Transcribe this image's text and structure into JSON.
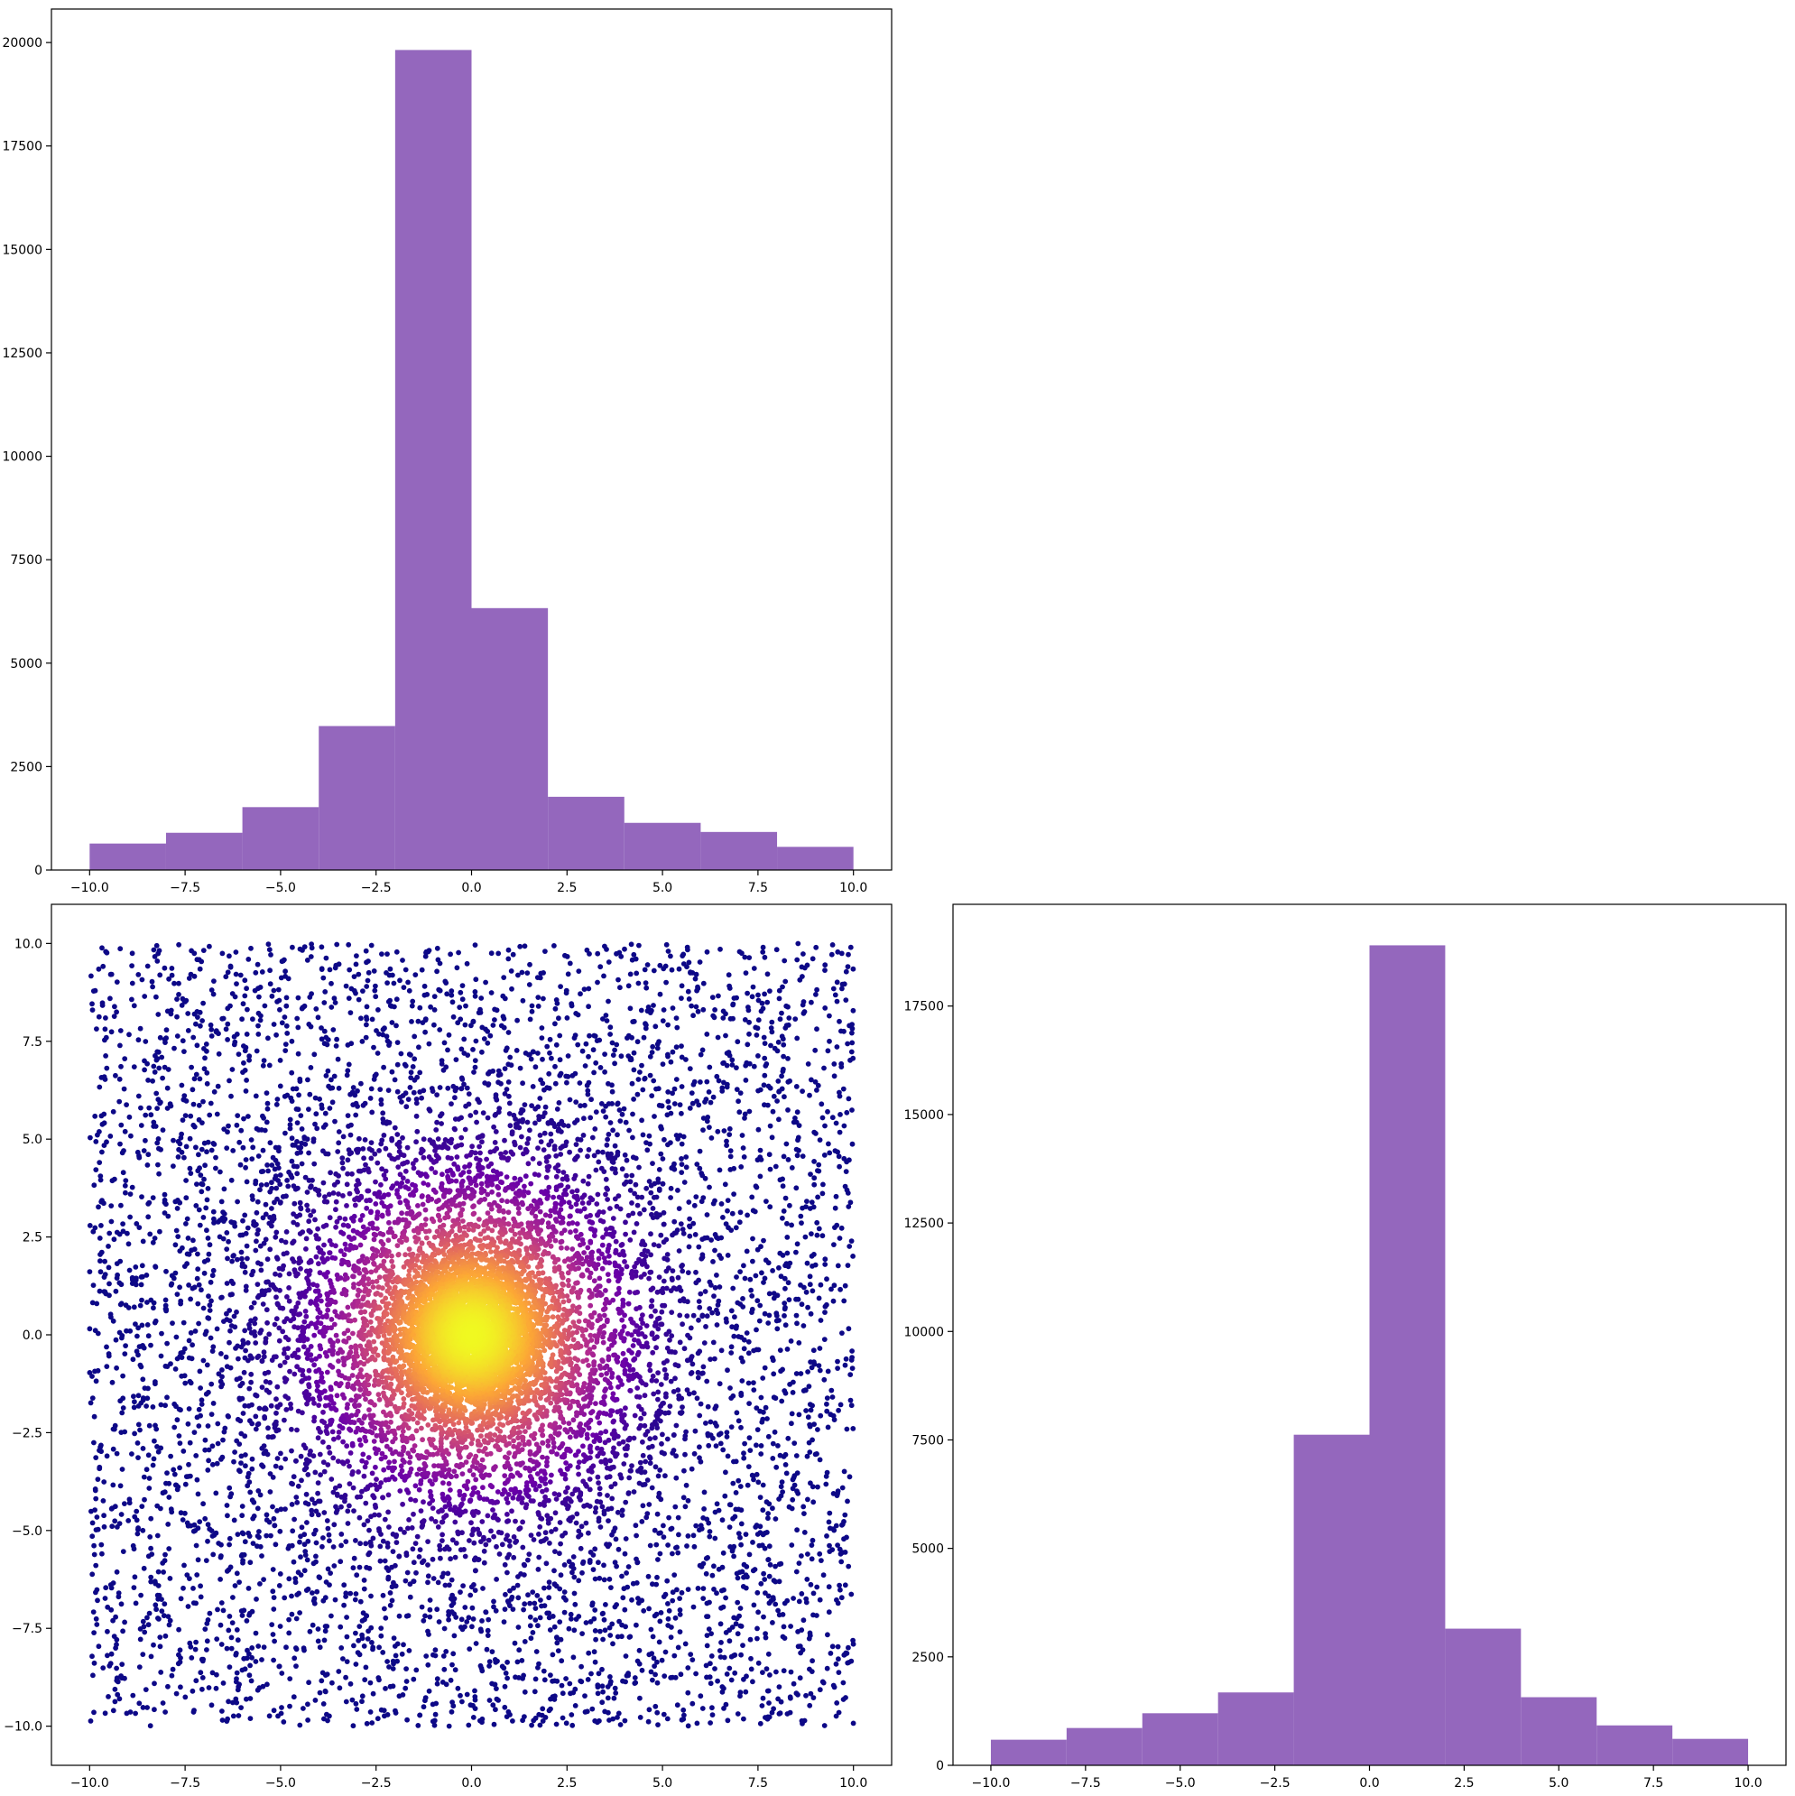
{
  "figure": {
    "layout": "2x2 corner plot, top-right empty",
    "background": "#ffffff"
  },
  "chart_data": [
    {
      "type": "bar",
      "panel": "top-left",
      "title": "",
      "xlabel": "",
      "ylabel": "",
      "bar_color": "#9467bd",
      "bin_edges": [
        -10,
        -8,
        -6,
        -4,
        -2,
        0,
        2,
        4,
        6,
        8,
        10
      ],
      "values": [
        640,
        900,
        1520,
        3480,
        19820,
        6330,
        1770,
        1140,
        920,
        560
      ],
      "xlim": [
        -11,
        11
      ],
      "ylim": [
        0,
        20810
      ],
      "xticks": [
        -10,
        -7.5,
        -5,
        -2.5,
        0,
        2.5,
        5,
        7.5,
        10
      ],
      "xtick_labels": [
        "−10.0",
        "−7.5",
        "−5.0",
        "−2.5",
        "0.0",
        "2.5",
        "5.0",
        "7.5",
        "10.0"
      ],
      "yticks": [
        0,
        2500,
        5000,
        7500,
        10000,
        12500,
        15000,
        17500,
        20000
      ],
      "ytick_labels": [
        "0",
        "2500",
        "5000",
        "7500",
        "10000",
        "12500",
        "15000",
        "17500",
        "20000"
      ]
    },
    {
      "type": "scatter",
      "panel": "bottom-left",
      "title": "",
      "xlabel": "",
      "ylabel": "",
      "colormap": "plasma",
      "colormap_stops": [
        "#0d0887",
        "#6a00a8",
        "#b12a90",
        "#e16462",
        "#fca636",
        "#f0f921"
      ],
      "description_of_points": "uniform background over [-10,10]^2 plus dense cloud centered at (0,0), colored by density",
      "point_count_approx": 11000,
      "xlim": [
        -11,
        11
      ],
      "ylim": [
        -11,
        11
      ],
      "xticks": [
        -10,
        -7.5,
        -5,
        -2.5,
        0,
        2.5,
        5,
        7.5,
        10
      ],
      "xtick_labels": [
        "−10.0",
        "−7.5",
        "−5.0",
        "−2.5",
        "0.0",
        "2.5",
        "5.0",
        "7.5",
        "10.0"
      ],
      "yticks": [
        -10,
        -7.5,
        -5,
        -2.5,
        0,
        2.5,
        5,
        7.5,
        10
      ],
      "ytick_labels": [
        "−10.0",
        "−7.5",
        "−5.0",
        "−2.5",
        "0.0",
        "2.5",
        "5.0",
        "7.5",
        "10.0"
      ]
    },
    {
      "type": "bar",
      "panel": "bottom-right",
      "title": "",
      "xlabel": "",
      "ylabel": "",
      "bar_color": "#9467bd",
      "bin_edges": [
        -10,
        -8,
        -6,
        -4,
        -2,
        0,
        2,
        4,
        6,
        8,
        10
      ],
      "values": [
        590,
        860,
        1200,
        1680,
        7620,
        18900,
        3150,
        1570,
        920,
        610
      ],
      "xlim": [
        -11,
        11
      ],
      "ylim": [
        0,
        19845
      ],
      "xticks": [
        -10,
        -7.5,
        -5,
        -2.5,
        0,
        2.5,
        5,
        7.5,
        10
      ],
      "xtick_labels": [
        "−10.0",
        "−7.5",
        "−5.0",
        "−2.5",
        "0.0",
        "2.5",
        "5.0",
        "7.5",
        "10.0"
      ],
      "yticks": [
        0,
        2500,
        5000,
        7500,
        10000,
        12500,
        15000,
        17500
      ],
      "ytick_labels": [
        "0",
        "2500",
        "5000",
        "7500",
        "10000",
        "12500",
        "15000",
        "17500"
      ]
    }
  ]
}
